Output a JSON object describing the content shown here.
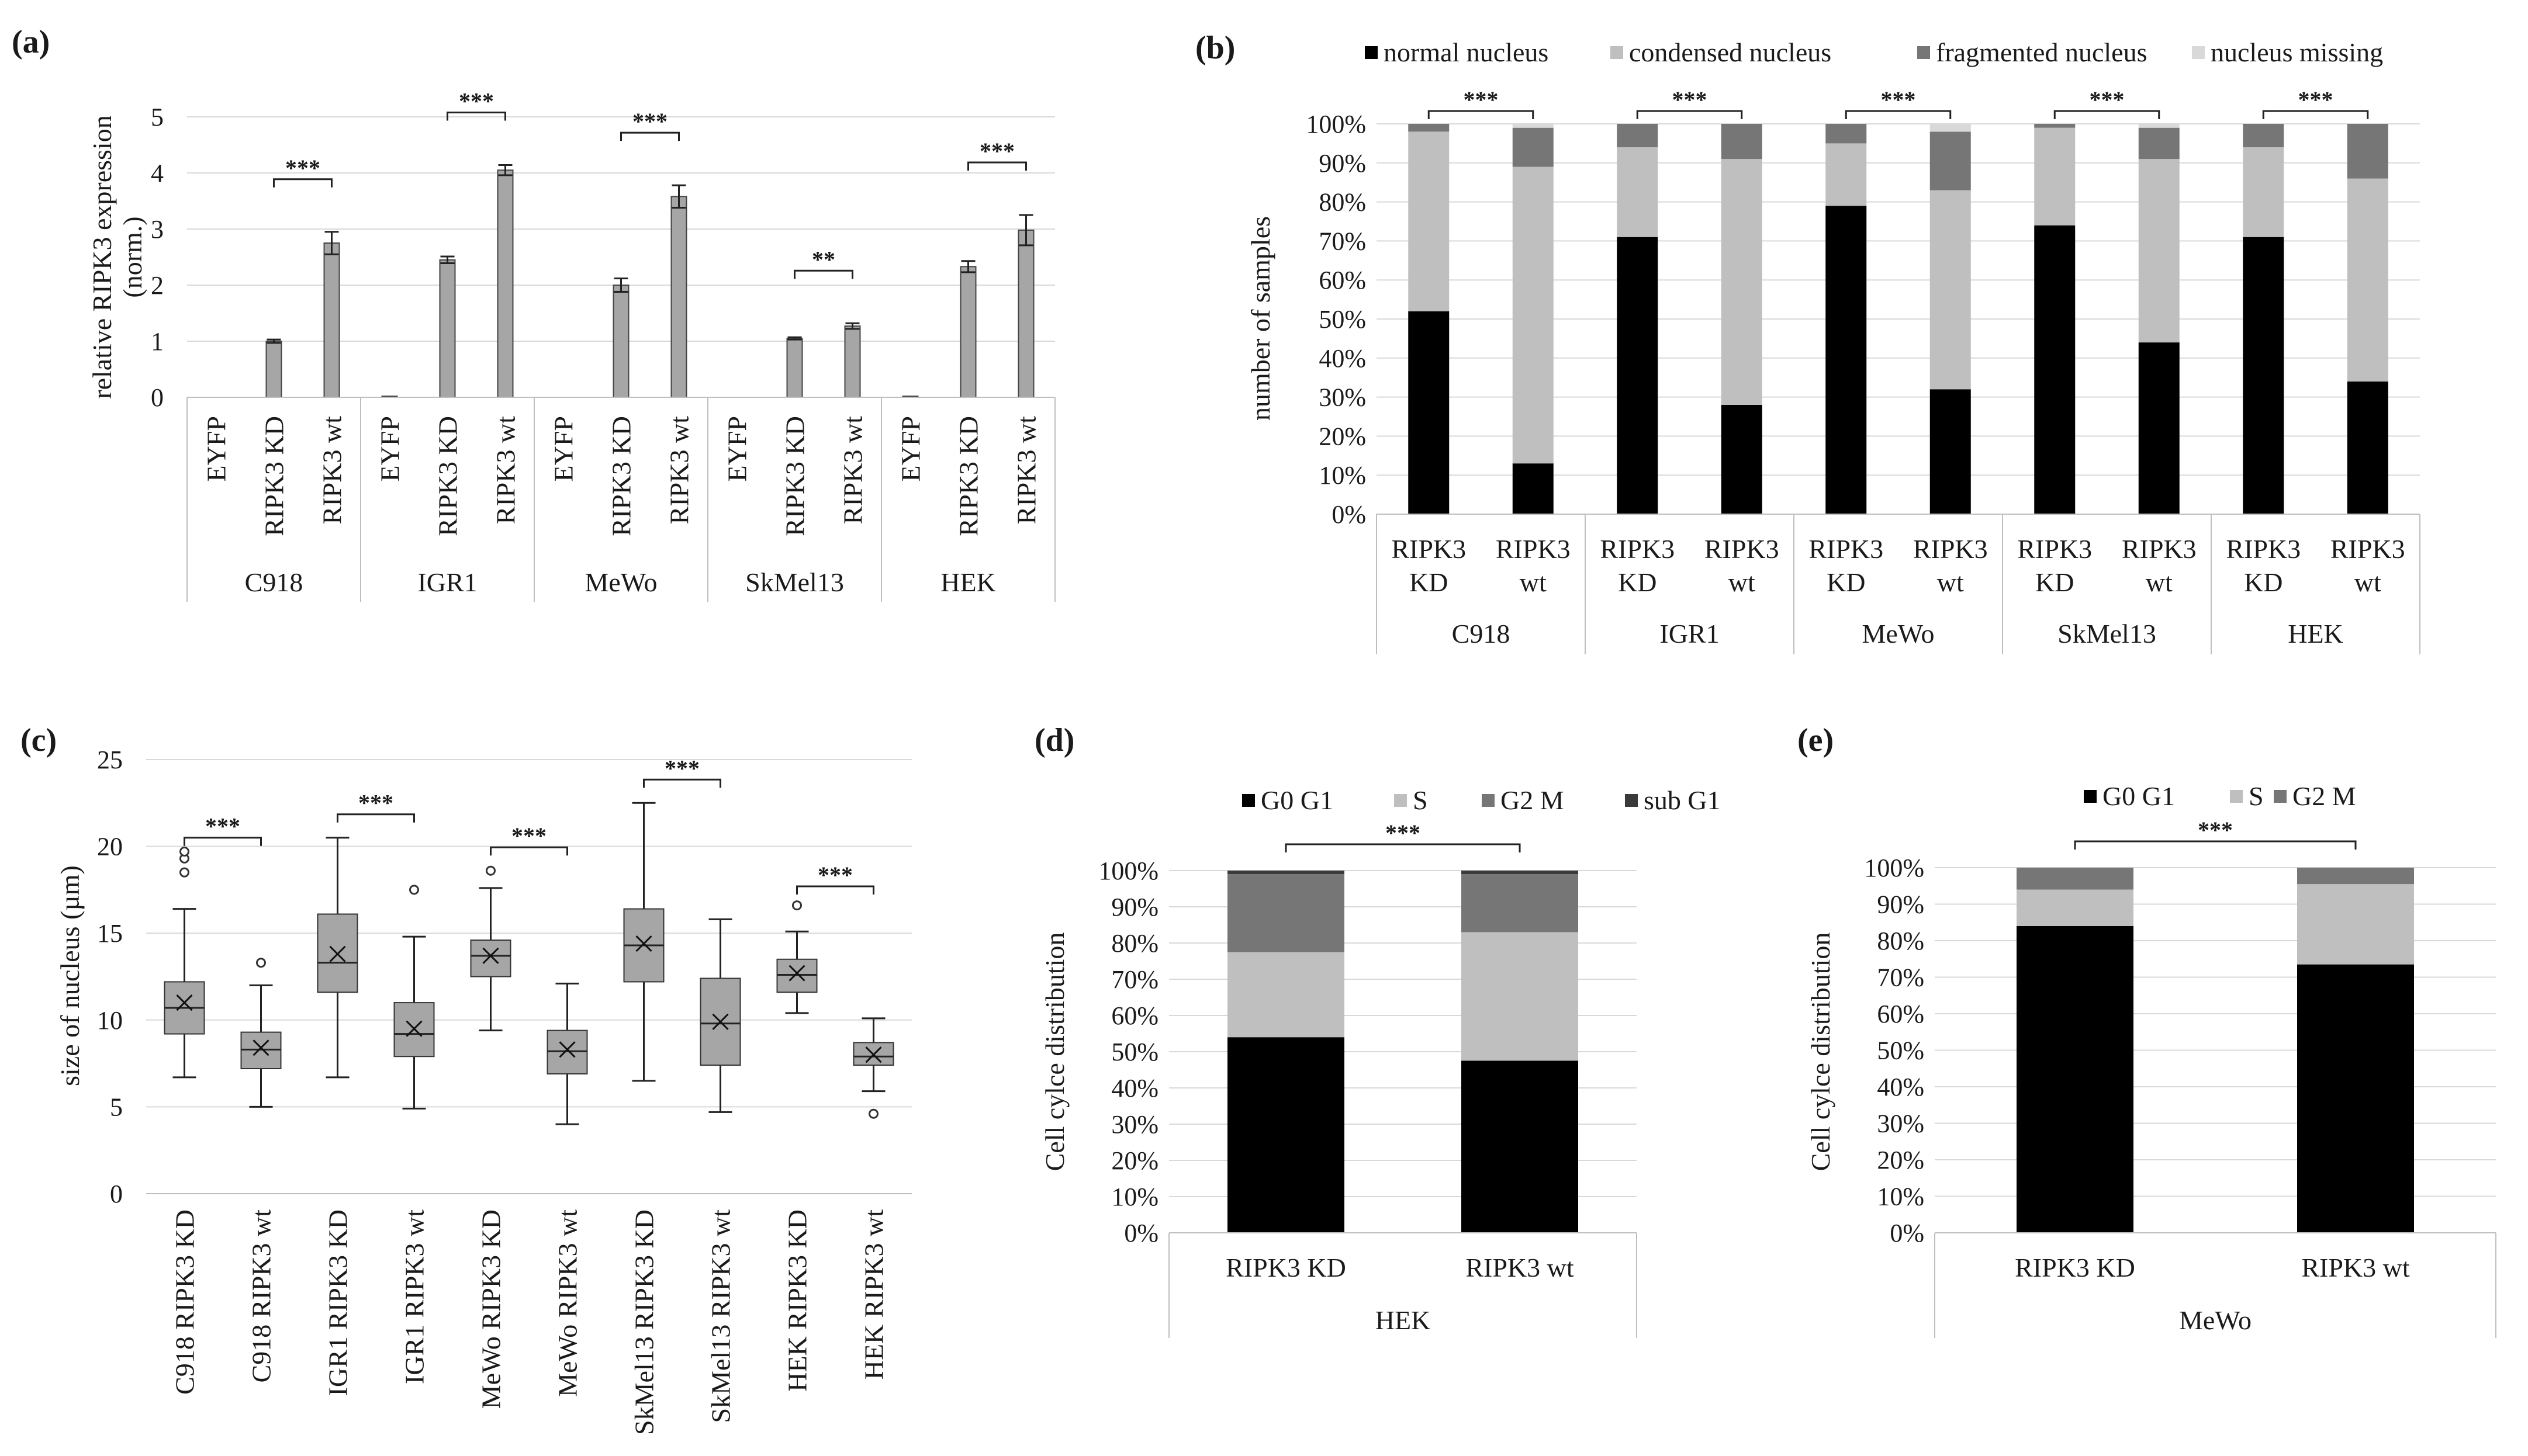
{
  "colors": {
    "normal": "#000000",
    "condensed": "#bfbfbf",
    "fragmented": "#767676",
    "missing": "#d9d9d9",
    "bar": "#a6a6a6",
    "box": "#a6a6a6",
    "grid": "#d9d9d9",
    "axis": "#bfbfbf"
  },
  "chart_data": [
    {
      "panel": "(a)",
      "type": "bar",
      "ylabel": "relative RIPK3 expression (norm.)",
      "ylabel_lines": [
        "relative RIPK3 expression",
        "(norm.)"
      ],
      "ylim": [
        0,
        5
      ],
      "yticks": [
        "0",
        "1",
        "2",
        "3",
        "4",
        "5"
      ],
      "grid": true,
      "groups": [
        "C918",
        "IGR1",
        "MeWo",
        "SkMel13",
        "HEK"
      ],
      "conditions": [
        "EYFP",
        "RIPK3 KD",
        "RIPK3 wt"
      ],
      "values": [
        [
          0,
          1.0,
          2.75
        ],
        [
          0.02,
          2.45,
          4.05
        ],
        [
          0,
          2.0,
          3.58
        ],
        [
          0,
          1.05,
          1.27
        ],
        [
          0.02,
          2.33,
          2.98
        ]
      ],
      "errors": [
        [
          0,
          0.03,
          0.2
        ],
        [
          0,
          0.06,
          0.09
        ],
        [
          0,
          0.12,
          0.2
        ],
        [
          0,
          0.02,
          0.05
        ],
        [
          0,
          0.1,
          0.27
        ]
      ],
      "significance": [
        "***",
        "***",
        "***",
        "**",
        "***"
      ]
    },
    {
      "panel": "(b)",
      "type": "bar",
      "stacked": true,
      "ylabel": "number of samples",
      "yticks": [
        "0%",
        "10%",
        "20%",
        "30%",
        "40%",
        "50%",
        "60%",
        "70%",
        "80%",
        "90%",
        "100%"
      ],
      "groups": [
        "C918",
        "IGR1",
        "MeWo",
        "SkMel13",
        "HEK"
      ],
      "conditions": [
        [
          "RIPK3",
          "KD"
        ],
        [
          "RIPK3",
          "wt"
        ]
      ],
      "series": [
        {
          "name": "normal nucleus",
          "values": [
            52,
            13,
            71,
            28,
            79,
            32,
            74,
            44,
            71,
            34
          ]
        },
        {
          "name": "condensed nucleus",
          "values": [
            46,
            76,
            23,
            63,
            16,
            51,
            25,
            47,
            23,
            52
          ]
        },
        {
          "name": "fragmented nucleus",
          "values": [
            2,
            10,
            6,
            9,
            5,
            15,
            1,
            8,
            6,
            14
          ]
        },
        {
          "name": "nucleus missing",
          "values": [
            0,
            1,
            0,
            0,
            0,
            2,
            0,
            1,
            0,
            0
          ]
        }
      ],
      "significance": [
        "***",
        "***",
        "***",
        "***",
        "***"
      ]
    },
    {
      "panel": "(c)",
      "type": "box",
      "ylabel": "size of nucleus (µm)",
      "ylim": [
        0,
        25
      ],
      "yticks": [
        "0",
        "5",
        "10",
        "15",
        "20",
        "25"
      ],
      "categories": [
        "C918 RIPK3 KD",
        "C918 RIPK3 wt",
        "IGR1 RIPK3 KD",
        "IGR1 RIPK3 wt",
        "MeWo RIPK3 KD",
        "MeWo RIPK3 wt",
        "SkMel13 RIPK3 KD",
        "SkMel13 RIPK3 wt",
        "HEK RIPK3 KD",
        "HEK RIPK3 wt"
      ],
      "boxes": [
        {
          "min": 6.7,
          "q1": 9.2,
          "median": 10.7,
          "q3": 12.2,
          "max": 16.4,
          "mean": 11.0,
          "outliers": [
            18.5,
            19.3,
            19.7
          ]
        },
        {
          "min": 5.0,
          "q1": 7.2,
          "median": 8.3,
          "q3": 9.3,
          "max": 12.0,
          "mean": 8.4,
          "outliers": [
            13.3
          ]
        },
        {
          "min": 6.7,
          "q1": 11.6,
          "median": 13.3,
          "q3": 16.1,
          "max": 20.5,
          "mean": 13.8,
          "outliers": []
        },
        {
          "min": 4.9,
          "q1": 7.9,
          "median": 9.2,
          "q3": 11.0,
          "max": 14.8,
          "mean": 9.5,
          "outliers": [
            17.5
          ]
        },
        {
          "min": 9.4,
          "q1": 12.5,
          "median": 13.7,
          "q3": 14.6,
          "max": 17.6,
          "mean": 13.7,
          "outliers": [
            18.6
          ]
        },
        {
          "min": 4.0,
          "q1": 6.9,
          "median": 8.2,
          "q3": 9.4,
          "max": 12.1,
          "mean": 8.3,
          "outliers": []
        },
        {
          "min": 6.5,
          "q1": 12.2,
          "median": 14.3,
          "q3": 16.4,
          "max": 22.5,
          "mean": 14.4,
          "outliers": []
        },
        {
          "min": 4.7,
          "q1": 7.4,
          "median": 9.8,
          "q3": 12.4,
          "max": 15.8,
          "mean": 9.9,
          "outliers": []
        },
        {
          "min": 10.4,
          "q1": 11.6,
          "median": 12.6,
          "q3": 13.5,
          "max": 15.1,
          "mean": 12.7,
          "outliers": [
            16.6
          ]
        },
        {
          "min": 5.9,
          "q1": 7.4,
          "median": 7.9,
          "q3": 8.7,
          "max": 10.1,
          "mean": 8.0,
          "outliers": [
            4.6
          ]
        }
      ],
      "significance": [
        "***",
        "***",
        "***",
        "***",
        "***"
      ]
    },
    {
      "panel": "(d)",
      "type": "bar",
      "stacked": true,
      "ylabel": "Cell cylce distribution",
      "yticks": [
        "0%",
        "10%",
        "20%",
        "30%",
        "40%",
        "50%",
        "60%",
        "70%",
        "80%",
        "90%",
        "100%"
      ],
      "group": "HEK",
      "categories": [
        "RIPK3 KD",
        "RIPK3 wt"
      ],
      "series": [
        {
          "name": "G0 G1",
          "values": [
            54,
            47.5
          ]
        },
        {
          "name": "S",
          "values": [
            23.5,
            35.5
          ]
        },
        {
          "name": "G2 M",
          "values": [
            21.5,
            16
          ]
        },
        {
          "name": "sub G1",
          "values": [
            1,
            1
          ]
        }
      ],
      "significance": "***"
    },
    {
      "panel": "(e)",
      "type": "bar",
      "stacked": true,
      "ylabel": "Cell cylce distribution",
      "yticks": [
        "0%",
        "10%",
        "20%",
        "30%",
        "40%",
        "50%",
        "60%",
        "70%",
        "80%",
        "90%",
        "100%"
      ],
      "group": "MeWo",
      "categories": [
        "RIPK3 KD",
        "RIPK3 wt"
      ],
      "series": [
        {
          "name": "G0 G1",
          "values": [
            84,
            73.5
          ]
        },
        {
          "name": "S",
          "values": [
            10,
            22
          ]
        },
        {
          "name": "G2 M",
          "values": [
            6,
            4.5
          ]
        }
      ],
      "significance": "***"
    }
  ]
}
